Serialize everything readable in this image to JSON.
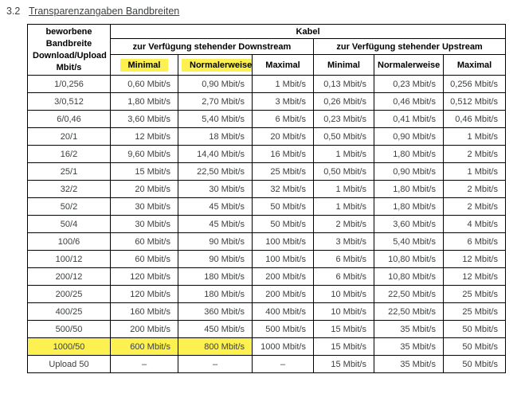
{
  "page": {
    "section_number": "3.2",
    "title": "Transparenzangaben Bandbreiten"
  },
  "table": {
    "row_header": "beworbene Bandbreite Download/Upload Mbit/s",
    "col_group_header": "Kabel",
    "downstream_header": "zur Verfügung stehender Downstream",
    "upstream_header": "zur Verfügung stehender Upstream",
    "sub_headers": [
      "Minimal",
      "Normalerweise",
      "Maximal",
      "Minimal",
      "Normalerweise",
      "Maximal"
    ],
    "sub_header_highlights": [
      true,
      true,
      false,
      false,
      false,
      false
    ],
    "highlight_color": "#fcf151",
    "rows": [
      {
        "label": "1/0,256",
        "cells": [
          "0,60 Mbit/s",
          "0,90 Mbit/s",
          "1 Mbit/s",
          "0,13 Mbit/s",
          "0,23 Mbit/s",
          "0,256 Mbit/s"
        ]
      },
      {
        "label": "3/0,512",
        "cells": [
          "1,80 Mbit/s",
          "2,70 Mbit/s",
          "3 Mbit/s",
          "0,26 Mbit/s",
          "0,46 Mbit/s",
          "0,512 Mbit/s"
        ]
      },
      {
        "label": "6/0,46",
        "cells": [
          "3,60 Mbit/s",
          "5,40 Mbit/s",
          "6 Mbit/s",
          "0,23 Mbit/s",
          "0,41 Mbit/s",
          "0,46 Mbit/s"
        ]
      },
      {
        "label": "20/1",
        "cells": [
          "12 Mbit/s",
          "18 Mbit/s",
          "20 Mbit/s",
          "0,50 Mbit/s",
          "0,90 Mbit/s",
          "1 Mbit/s"
        ]
      },
      {
        "label": "16/2",
        "cells": [
          "9,60 Mbit/s",
          "14,40 Mbit/s",
          "16 Mbit/s",
          "1 Mbit/s",
          "1,80 Mbit/s",
          "2 Mbit/s"
        ]
      },
      {
        "label": "25/1",
        "cells": [
          "15 Mbit/s",
          "22,50 Mbit/s",
          "25 Mbit/s",
          "0,50 Mbit/s",
          "0,90 Mbit/s",
          "1 Mbit/s"
        ]
      },
      {
        "label": "32/2",
        "cells": [
          "20 Mbit/s",
          "30 Mbit/s",
          "32 Mbit/s",
          "1 Mbit/s",
          "1,80 Mbit/s",
          "2 Mbit/s"
        ]
      },
      {
        "label": "50/2",
        "cells": [
          "30 Mbit/s",
          "45 Mbit/s",
          "50 Mbit/s",
          "1 Mbit/s",
          "1,80 Mbit/s",
          "2 Mbit/s"
        ]
      },
      {
        "label": "50/4",
        "cells": [
          "30 Mbit/s",
          "45 Mbit/s",
          "50 Mbit/s",
          "2 Mbit/s",
          "3,60 Mbit/s",
          "4 Mbit/s"
        ]
      },
      {
        "label": "100/6",
        "cells": [
          "60 Mbit/s",
          "90 Mbit/s",
          "100 Mbit/s",
          "3 Mbit/s",
          "5,40 Mbit/s",
          "6 Mbit/s"
        ]
      },
      {
        "label": "100/12",
        "cells": [
          "60 Mbit/s",
          "90 Mbit/s",
          "100 Mbit/s",
          "6 Mbit/s",
          "10,80 Mbit/s",
          "12 Mbit/s"
        ]
      },
      {
        "label": "200/12",
        "cells": [
          "120 Mbit/s",
          "180 Mbit/s",
          "200 Mbit/s",
          "6 Mbit/s",
          "10,80 Mbit/s",
          "12 Mbit/s"
        ]
      },
      {
        "label": "200/25",
        "cells": [
          "120 Mbit/s",
          "180 Mbit/s",
          "200 Mbit/s",
          "10 Mbit/s",
          "22,50 Mbit/s",
          "25 Mbit/s"
        ]
      },
      {
        "label": "400/25",
        "cells": [
          "160 Mbit/s",
          "360 Mbit/s",
          "400 Mbit/s",
          "10 Mbit/s",
          "22,50 Mbit/s",
          "25 Mbit/s"
        ]
      },
      {
        "label": "500/50",
        "cells": [
          "200 Mbit/s",
          "450 Mbit/s",
          "500 Mbit/s",
          "15 Mbit/s",
          "35 Mbit/s",
          "50 Mbit/s"
        ]
      },
      {
        "label": "1000/50",
        "cells": [
          "600 Mbit/s",
          "800 Mbit/s",
          "1000 Mbit/s",
          "15 Mbit/s",
          "35 Mbit/s",
          "50 Mbit/s"
        ],
        "highlight_label": true,
        "highlight_cells": [
          0,
          1
        ]
      },
      {
        "label": "Upload 50",
        "cells": [
          "–",
          "–",
          "–",
          "15 Mbit/s",
          "35 Mbit/s",
          "50 Mbit/s"
        ]
      }
    ]
  }
}
